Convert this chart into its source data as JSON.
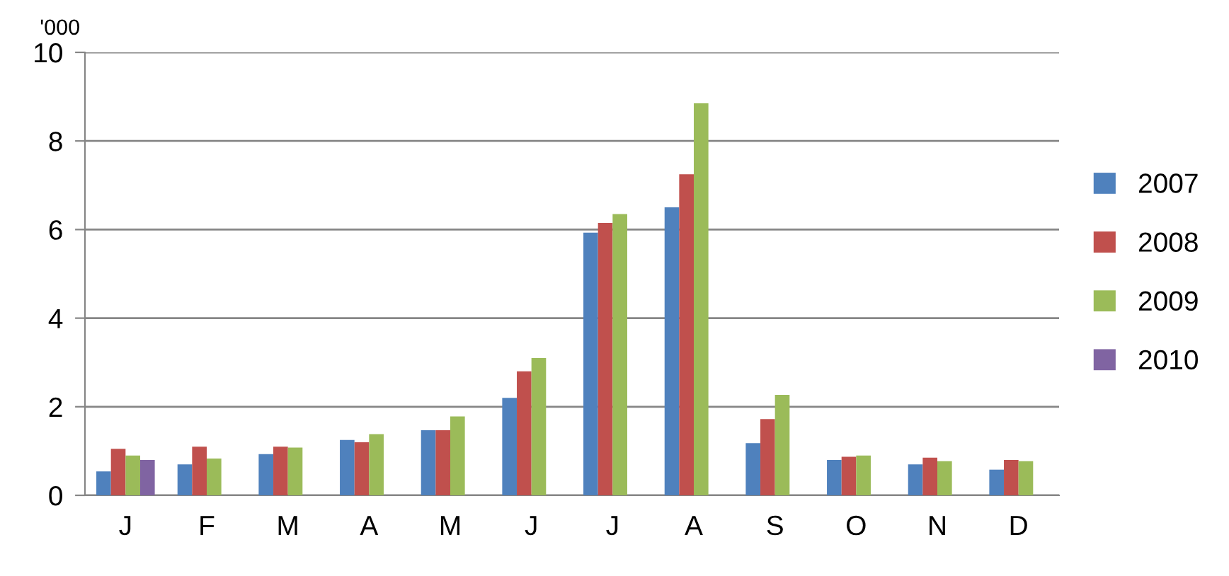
{
  "chart_data": {
    "type": "bar",
    "categories": [
      "J",
      "F",
      "M",
      "A",
      "M",
      "J",
      "J",
      "A",
      "S",
      "O",
      "N",
      "D"
    ],
    "series": [
      {
        "name": "2007",
        "color": "#4f81bd",
        "values": [
          0.54,
          0.7,
          0.93,
          1.25,
          1.47,
          2.2,
          5.93,
          6.5,
          1.18,
          0.8,
          0.7,
          0.58
        ]
      },
      {
        "name": "2008",
        "color": "#c0504d",
        "values": [
          1.05,
          1.1,
          1.1,
          1.2,
          1.47,
          2.8,
          6.15,
          7.25,
          1.72,
          0.87,
          0.85,
          0.8
        ]
      },
      {
        "name": "2009",
        "color": "#9bbb59",
        "values": [
          0.9,
          0.83,
          1.08,
          1.38,
          1.78,
          3.1,
          6.35,
          8.85,
          2.27,
          0.9,
          0.77,
          0.77
        ]
      },
      {
        "name": "2010",
        "color": "#8064a2",
        "values": [
          0.8,
          null,
          null,
          null,
          null,
          null,
          null,
          null,
          null,
          null,
          null,
          null
        ]
      }
    ],
    "ylim": [
      0,
      10
    ],
    "yticks": [
      0,
      2,
      4,
      6,
      8,
      10
    ],
    "grid": "y",
    "legend": "right",
    "annotations": [
      "'000"
    ]
  }
}
